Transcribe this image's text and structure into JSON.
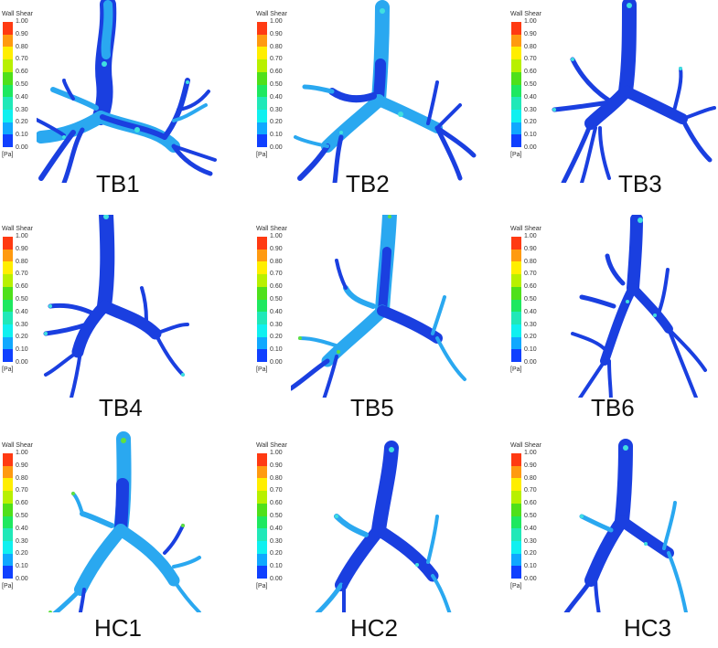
{
  "figure": {
    "legend": {
      "title": "Wall Shear",
      "unit": "[Pa]",
      "ticks": [
        "1.00",
        "0.90",
        "0.80",
        "0.70",
        "0.60",
        "0.50",
        "0.40",
        "0.30",
        "0.20",
        "0.10",
        "0.00"
      ],
      "bands_top_to_bottom": [
        "#ff3a12",
        "#ff9a10",
        "#ffee00",
        "#b8f000",
        "#4fe01a",
        "#1ee860",
        "#20e8b8",
        "#10f0f0",
        "#10a8ff",
        "#1040ff"
      ]
    },
    "colors": {
      "airway_base": "#1a3fe0",
      "airway_dark": "#1230c0",
      "airway_light": "#2aa8f0",
      "airway_cyan": "#40e0e0",
      "airway_green": "#60e040"
    },
    "panels": [
      {
        "id": "TB1",
        "label": "TB1",
        "row": 0,
        "col": 0,
        "high_shear": "medium"
      },
      {
        "id": "TB2",
        "label": "TB2",
        "row": 0,
        "col": 1,
        "high_shear": "medium"
      },
      {
        "id": "TB3",
        "label": "TB3",
        "row": 0,
        "col": 2,
        "high_shear": "low"
      },
      {
        "id": "TB4",
        "label": "TB4",
        "row": 1,
        "col": 0,
        "high_shear": "low"
      },
      {
        "id": "TB5",
        "label": "TB5",
        "row": 1,
        "col": 1,
        "high_shear": "medium"
      },
      {
        "id": "TB6",
        "label": "TB6",
        "row": 1,
        "col": 2,
        "high_shear": "low"
      },
      {
        "id": "HC1",
        "label": "HC1",
        "row": 2,
        "col": 0,
        "high_shear": "high"
      },
      {
        "id": "HC2",
        "label": "HC2",
        "row": 2,
        "col": 1,
        "high_shear": "medium"
      },
      {
        "id": "HC3",
        "label": "HC3",
        "row": 2,
        "col": 2,
        "high_shear": "medium"
      }
    ]
  }
}
